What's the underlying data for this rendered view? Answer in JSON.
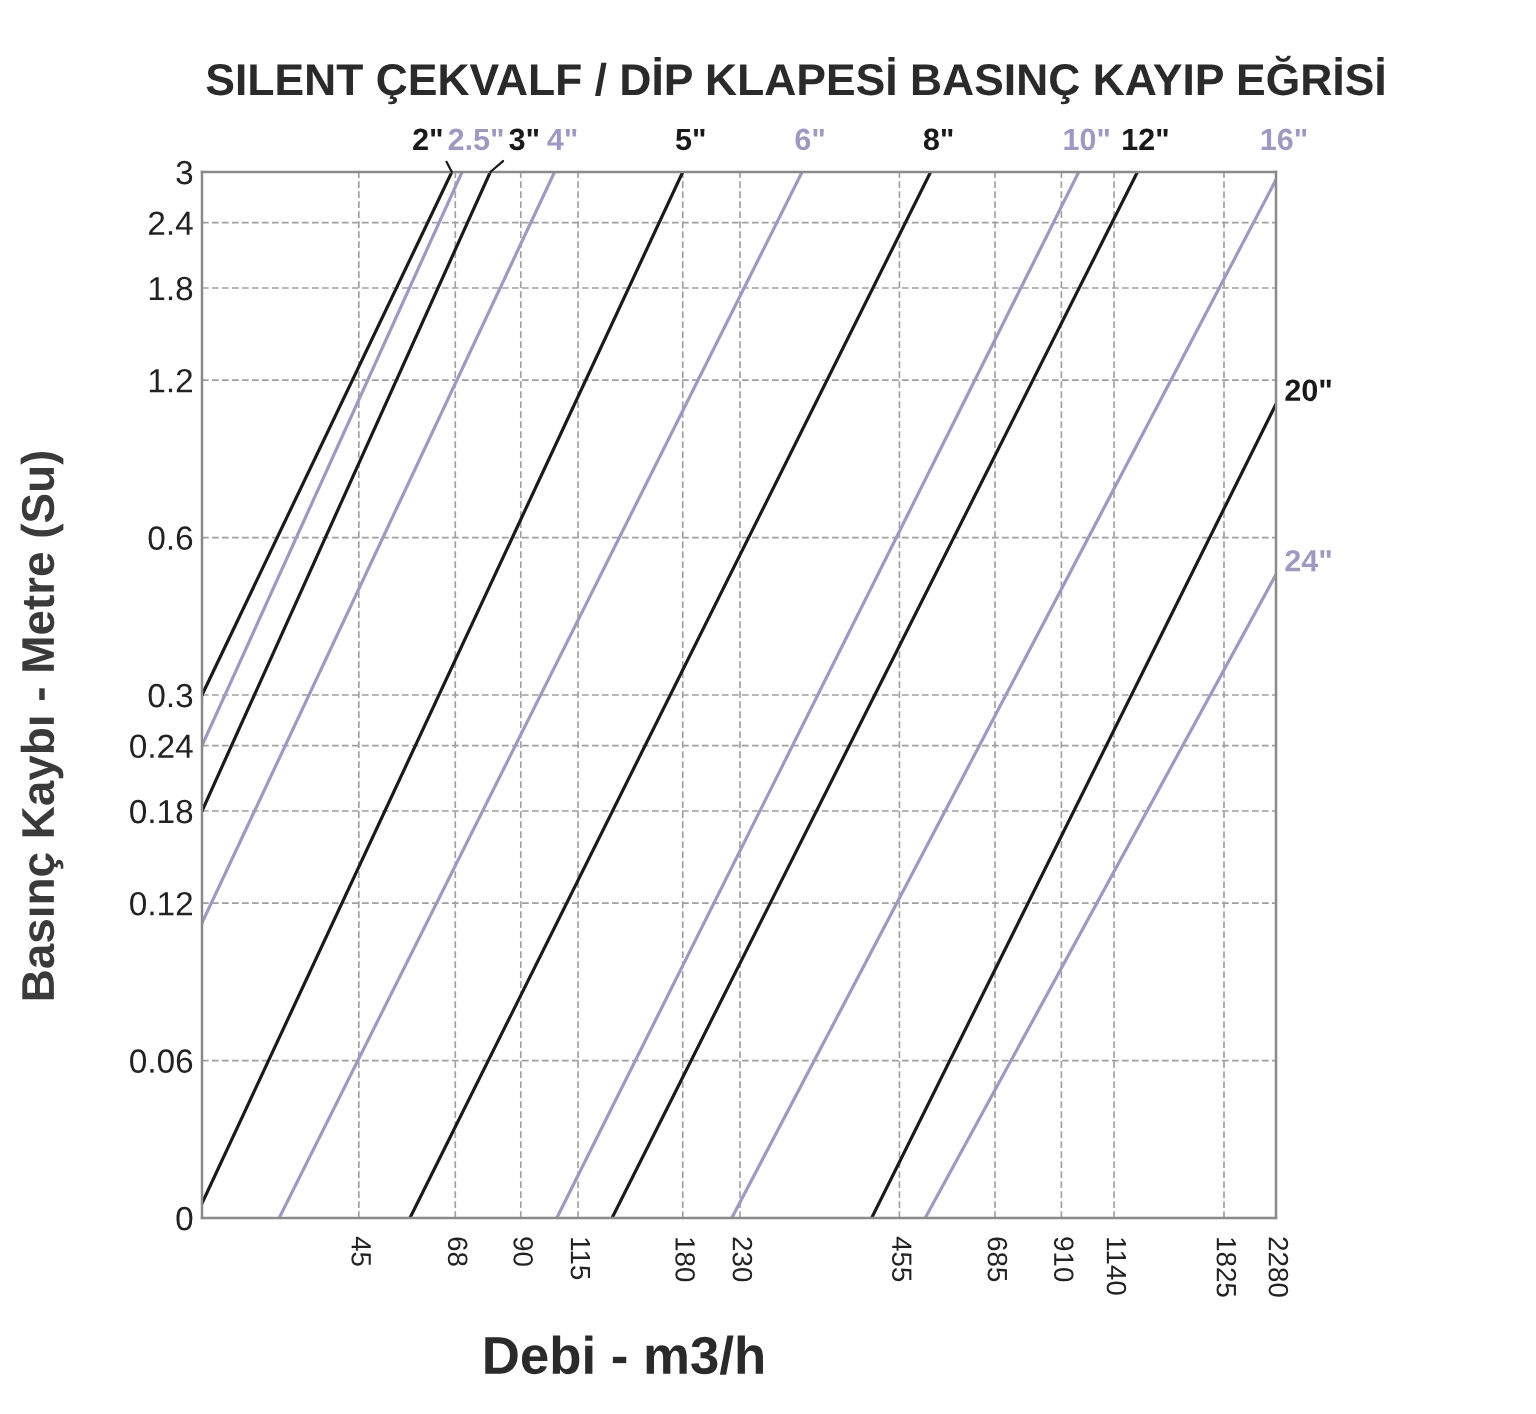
{
  "chart_data": {
    "type": "line",
    "title": "SILENT ÇEKVALF / DİP KLAPESİ BASINÇ KAYIP EĞRİSİ",
    "xlabel": "Debi - m3/h",
    "ylabel": "Basınç Kaybı - Metre (Su)",
    "log": "xy",
    "grid": true,
    "xlim": [
      23,
      2280
    ],
    "ylim": [
      0.03,
      3
    ],
    "xticks": [
      45,
      68,
      90,
      115,
      180,
      230,
      455,
      685,
      910,
      1140,
      1825,
      2280
    ],
    "yticks": [
      {
        "value": 0.03,
        "label": "0"
      },
      0.06,
      0.12,
      0.18,
      0.24,
      0.3,
      0.6,
      1.2,
      1.8,
      2.4,
      3
    ],
    "series": [
      {
        "name": "2\"",
        "color": "#1a1a1a",
        "x": [
          23,
          67
        ],
        "values": [
          0.3,
          3
        ]
      },
      {
        "name": "2.5\"",
        "color": "#a098c0",
        "x": [
          23,
          70
        ],
        "values": [
          0.24,
          3
        ]
      },
      {
        "name": "3\"",
        "color": "#1a1a1a",
        "x": [
          23,
          79
        ],
        "values": [
          0.18,
          3
        ]
      },
      {
        "name": "4\"",
        "color": "#a098c0",
        "x": [
          23,
          104
        ],
        "values": [
          0.11,
          3
        ]
      },
      {
        "name": "5\"",
        "color": "#1a1a1a",
        "x": [
          23,
          180
        ],
        "values": [
          0.032,
          3
        ]
      },
      {
        "name": "6\"",
        "color": "#a098c0",
        "x": [
          32,
          300
        ],
        "values": [
          0.03,
          3
        ]
      },
      {
        "name": "8\"",
        "color": "#1a1a1a",
        "x": [
          56,
          520
        ],
        "values": [
          0.03,
          3
        ]
      },
      {
        "name": "10\"",
        "color": "#a098c0",
        "x": [
          105,
          980
        ],
        "values": [
          0.03,
          3
        ]
      },
      {
        "name": "12\"",
        "color": "#1a1a1a",
        "x": [
          133,
          1260
        ],
        "values": [
          0.03,
          3
        ]
      },
      {
        "name": "16\"",
        "color": "#a098c0",
        "x": [
          222,
          2280
        ],
        "values": [
          0.03,
          2.9
        ]
      },
      {
        "name": "20\"",
        "color": "#1a1a1a",
        "x": [
          404,
          2280
        ],
        "values": [
          0.03,
          1.08
        ]
      },
      {
        "name": "24\"",
        "color": "#a098c0",
        "x": [
          508,
          2280
        ],
        "values": [
          0.03,
          0.51
        ]
      }
    ]
  }
}
